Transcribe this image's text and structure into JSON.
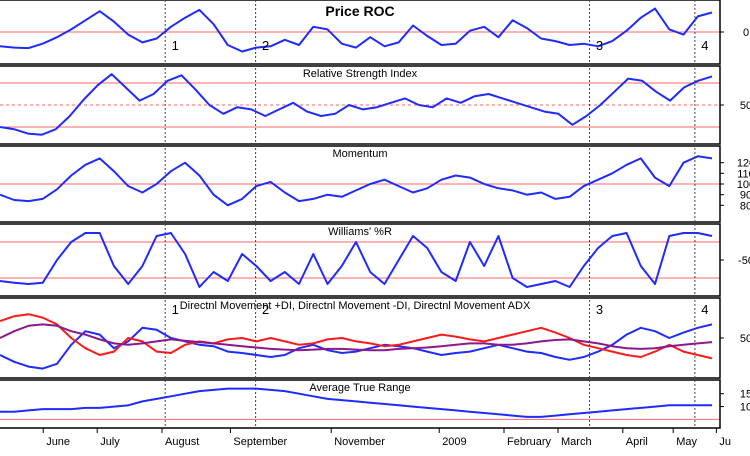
{
  "colors": {
    "series_blue": "#1f2bff",
    "series_red": "#ff1a1a",
    "series_purple": "#8a1a8a",
    "reference_line": "#ff6666",
    "panel_border": "#000000",
    "marker_line": "#444444"
  },
  "x_axis": {
    "months": [
      "June",
      "July",
      "August",
      "September",
      "November",
      "2009",
      "February",
      "March",
      "April",
      "May",
      "Ju"
    ]
  },
  "markers": [
    {
      "label": "1",
      "index": 0.232
    },
    {
      "label": "2",
      "index": 0.359
    },
    {
      "label": "3",
      "index": 0.828
    },
    {
      "label": "4",
      "index": 0.976
    }
  ],
  "chart_data": [
    {
      "type": "line",
      "title": "Price ROC",
      "ylim": [
        -1,
        1
      ],
      "yticks": [
        "0"
      ],
      "reference_lines": [
        0
      ],
      "series": [
        {
          "color": "#1f2bff",
          "values": [
            -0.55,
            -0.6,
            -0.62,
            -0.45,
            -0.2,
            0.1,
            0.45,
            0.8,
            0.4,
            -0.1,
            -0.4,
            -0.25,
            0.2,
            0.55,
            0.85,
            0.3,
            -0.5,
            -0.75,
            -0.6,
            -0.55,
            -0.3,
            -0.5,
            0.2,
            0.1,
            -0.45,
            -0.6,
            -0.2,
            -0.55,
            -0.4,
            0.25,
            -0.15,
            -0.5,
            -0.45,
            0.05,
            0.2,
            -0.2,
            0.45,
            0.15,
            -0.25,
            -0.35,
            -0.5,
            -0.45,
            -0.55,
            -0.35,
            0.05,
            0.55,
            0.9,
            0.1,
            -0.1,
            0.6,
            0.75
          ]
        }
      ]
    },
    {
      "type": "line",
      "title": "Relative Strength Index",
      "ylim": [
        20,
        80
      ],
      "yticks": [
        "50"
      ],
      "reference_lines": [
        70,
        50,
        30
      ],
      "series": [
        {
          "color": "#1f2bff",
          "values": [
            30,
            28,
            24,
            23,
            28,
            40,
            55,
            68,
            78,
            66,
            54,
            60,
            72,
            77,
            64,
            50,
            42,
            48,
            46,
            40,
            46,
            52,
            44,
            40,
            42,
            50,
            46,
            48,
            52,
            56,
            50,
            48,
            56,
            52,
            58,
            60,
            56,
            52,
            48,
            44,
            42,
            32,
            40,
            50,
            62,
            74,
            72,
            62,
            54,
            66,
            72,
            76
          ]
        }
      ]
    },
    {
      "type": "line",
      "title": "Momentum",
      "ylim": [
        70,
        130
      ],
      "yticks": [
        "120",
        "110",
        "100",
        "90",
        "80"
      ],
      "reference_lines": [
        100
      ],
      "series": [
        {
          "color": "#1f2bff",
          "values": [
            90,
            85,
            84,
            86,
            95,
            108,
            118,
            124,
            112,
            98,
            92,
            100,
            112,
            120,
            108,
            90,
            80,
            86,
            98,
            102,
            92,
            84,
            86,
            90,
            88,
            94,
            100,
            104,
            98,
            92,
            96,
            104,
            108,
            106,
            100,
            96,
            94,
            90,
            92,
            86,
            88,
            98,
            104,
            110,
            118,
            124,
            106,
            98,
            120,
            126,
            124
          ]
        }
      ]
    },
    {
      "type": "line",
      "title": "Williams' %R",
      "ylim": [
        -100,
        0
      ],
      "yticks": [
        "-50"
      ],
      "reference_lines": [
        -20,
        -80
      ],
      "series": [
        {
          "color": "#1f2bff",
          "values": [
            -85,
            -88,
            -90,
            -88,
            -50,
            -20,
            -5,
            -5,
            -60,
            -90,
            -60,
            -10,
            -5,
            -40,
            -95,
            -70,
            -85,
            -40,
            -60,
            -85,
            -70,
            -90,
            -40,
            -90,
            -60,
            -20,
            -70,
            -90,
            -50,
            -10,
            -30,
            -70,
            -85,
            -20,
            -60,
            -10,
            -80,
            -95,
            -90,
            -85,
            -95,
            -60,
            -30,
            -10,
            -5,
            -60,
            -90,
            -10,
            -5,
            -5,
            -10
          ]
        }
      ]
    },
    {
      "type": "line",
      "title": "Directnl Movement +DI, Directnl Movement -DI, Directnl Movement ADX",
      "ylim": [
        0,
        100
      ],
      "yticks": [
        "50"
      ],
      "series": [
        {
          "color": "#1f2bff",
          "values": [
            25,
            15,
            8,
            5,
            12,
            40,
            60,
            55,
            35,
            45,
            65,
            62,
            50,
            45,
            40,
            38,
            30,
            28,
            25,
            22,
            25,
            35,
            40,
            32,
            28,
            30,
            35,
            40,
            38,
            35,
            30,
            25,
            28,
            30,
            35,
            40,
            35,
            30,
            28,
            22,
            18,
            22,
            30,
            40,
            55,
            65,
            60,
            50,
            58,
            65,
            70
          ]
        },
        {
          "color": "#ff1a1a",
          "values": [
            75,
            82,
            85,
            80,
            70,
            50,
            35,
            25,
            30,
            50,
            45,
            30,
            28,
            40,
            45,
            42,
            48,
            50,
            45,
            50,
            45,
            40,
            42,
            48,
            50,
            45,
            42,
            38,
            40,
            45,
            50,
            55,
            52,
            48,
            45,
            50,
            55,
            60,
            65,
            58,
            50,
            40,
            35,
            30,
            25,
            22,
            30,
            40,
            30,
            25,
            20
          ]
        },
        {
          "color": "#8a1a8a",
          "values": [
            50,
            60,
            68,
            70,
            68,
            60,
            55,
            48,
            42,
            40,
            42,
            45,
            48,
            46,
            44,
            42,
            40,
            38,
            36,
            34,
            33,
            32,
            33,
            34,
            34,
            33,
            32,
            32,
            34,
            35,
            36,
            38,
            40,
            42,
            42,
            40,
            40,
            42,
            45,
            47,
            48,
            45,
            42,
            38,
            35,
            34,
            35,
            38,
            40,
            42,
            44
          ]
        }
      ]
    },
    {
      "type": "area",
      "title": "Average True Range",
      "ylim": [
        4,
        18
      ],
      "yticks": [
        "15",
        "10"
      ],
      "reference_lines": [
        5
      ],
      "series": [
        {
          "color": "#1f2bff",
          "values": [
            8,
            8,
            8.5,
            9,
            9,
            9,
            9.5,
            9.5,
            10,
            10.5,
            12,
            13,
            14,
            15,
            16,
            16.5,
            17,
            17,
            17,
            16.5,
            16,
            15,
            14,
            13,
            12.5,
            12,
            11.5,
            11,
            10.5,
            10,
            9.5,
            9,
            8.5,
            8,
            7.5,
            7,
            6.5,
            6,
            6,
            6.5,
            7,
            7.5,
            8,
            8.5,
            9,
            9.5,
            10,
            10.5,
            10.5,
            10.5,
            10.5
          ]
        }
      ]
    }
  ]
}
